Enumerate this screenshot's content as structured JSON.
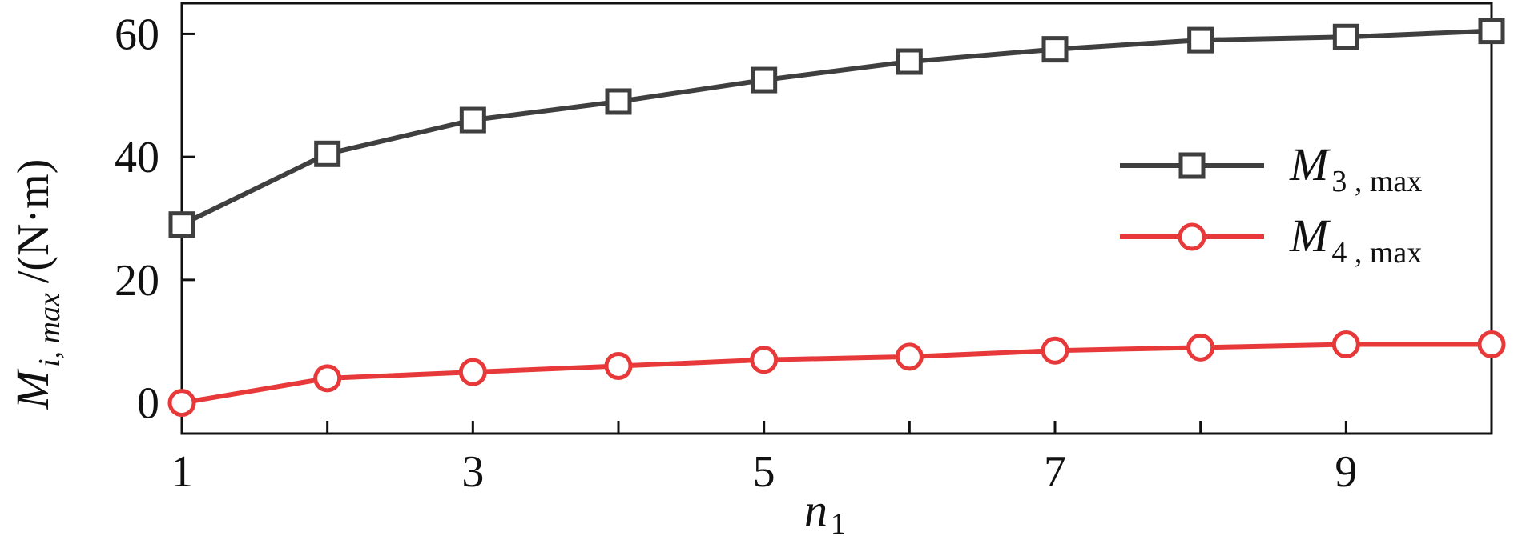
{
  "chart_data": {
    "type": "line",
    "x": [
      1,
      2,
      3,
      4,
      5,
      6,
      7,
      8,
      9,
      10
    ],
    "xticks": [
      1,
      3,
      5,
      7,
      9
    ],
    "xlim": [
      1,
      10
    ],
    "yticks": [
      0,
      20,
      40,
      60
    ],
    "ylim": [
      -5,
      65
    ],
    "xlabel": {
      "main": "n",
      "sub": "1"
    },
    "ylabel": {
      "main": "M",
      "sub": "i, max",
      "unit": "/(N·m)"
    },
    "grid": false,
    "legend_position": "center-right",
    "series": [
      {
        "name": {
          "main": "M",
          "sub": "3 , max"
        },
        "marker": "square",
        "color": "#3f3f3f",
        "values": [
          29,
          40.5,
          46,
          49,
          52.5,
          55.5,
          57.5,
          59,
          59.5,
          60.5
        ]
      },
      {
        "name": {
          "main": "M",
          "sub": "4 , max"
        },
        "marker": "circle",
        "color": "#e8393a",
        "values": [
          0,
          4,
          5,
          6,
          7,
          7.5,
          8.5,
          9,
          9.5,
          9.5
        ]
      }
    ]
  }
}
